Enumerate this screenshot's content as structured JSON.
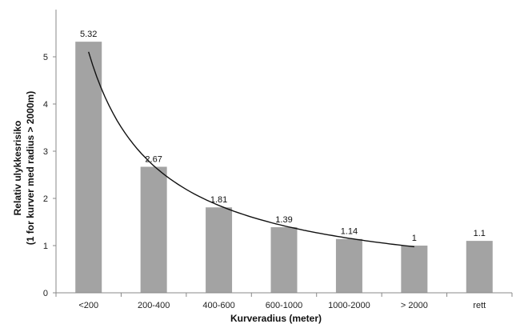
{
  "chart_data": {
    "type": "bar",
    "title": "",
    "xlabel": "Kurveradius (meter)",
    "ylabel_line1": "Relativ ulykkesrisiko",
    "ylabel_line2": "(1 for kurver med radius > 2000m)",
    "categories": [
      "<200",
      "200-400",
      "400-600",
      "600-1000",
      "1000-2000",
      "> 2000",
      "rett"
    ],
    "values": [
      5.32,
      2.67,
      1.81,
      1.39,
      1.14,
      1,
      1.1
    ],
    "data_labels": [
      "5.32",
      "2.67",
      "1.81",
      "1.39",
      "1.14",
      "1",
      "1.1"
    ],
    "ylim": [
      0,
      6
    ],
    "yticks": [
      0,
      1,
      2,
      3,
      4,
      5
    ],
    "trendline": {
      "type": "power",
      "x": [
        1,
        2,
        3,
        4,
        5,
        6
      ],
      "y": [
        4.96,
        2.71,
        1.93,
        1.47,
        1.16,
        0.92
      ]
    },
    "grid": false,
    "colors": {
      "bar": "#a3a3a3",
      "trendline": "#111111",
      "axis": "#888888"
    }
  }
}
